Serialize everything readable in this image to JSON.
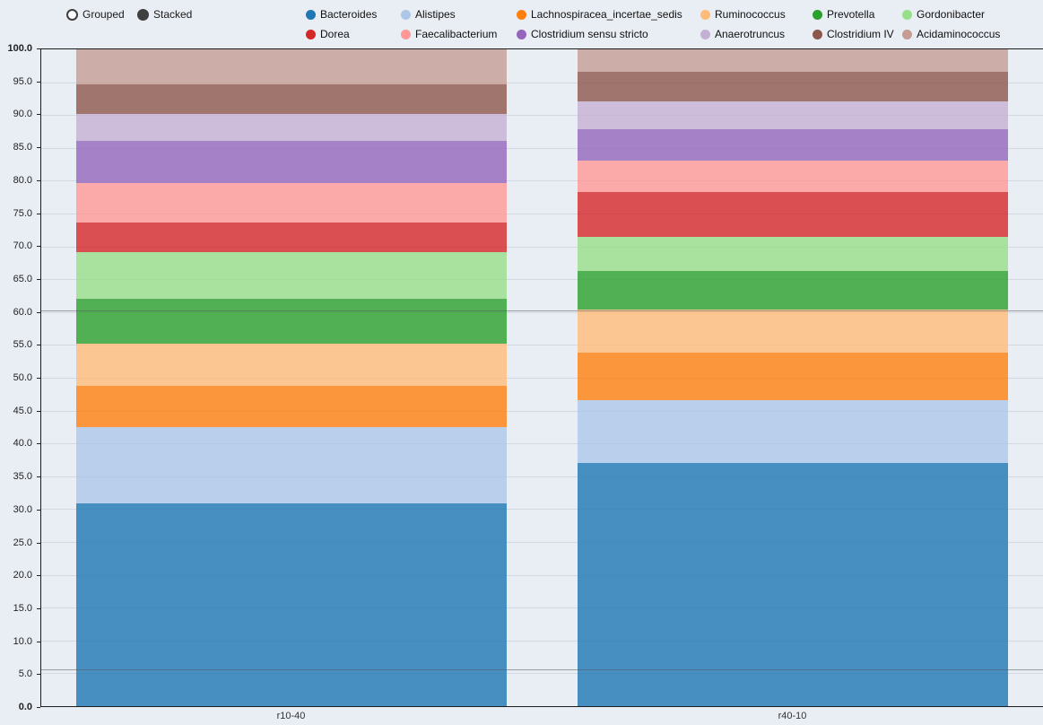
{
  "controls": {
    "grouped": "Grouped",
    "stacked": "Stacked",
    "selected": "Stacked"
  },
  "chart_data": {
    "type": "bar",
    "stacked": true,
    "title": "",
    "xlabel": "",
    "ylabel": "",
    "categories": [
      "r10-40",
      "r40-10"
    ],
    "ylim": [
      0,
      100
    ],
    "ytick_step": 5,
    "ytick_labels": [
      "100.0",
      "95.0",
      "90.0",
      "85.0",
      "80.0",
      "75.0",
      "70.0",
      "65.0",
      "60.0",
      "55.0",
      "50.0",
      "45.0",
      "40.0",
      "35.0",
      "30.0",
      "25.0",
      "20.0",
      "15.0",
      "10.0",
      "5.0",
      "0.0"
    ],
    "grid": true,
    "legend_position": "top",
    "reference_lines": [
      60.2,
      5.6
    ],
    "series": [
      {
        "name": "Bacteroides",
        "color": "#1f77b4",
        "values": [
          30.9,
          37.0
        ]
      },
      {
        "name": "Alistipes",
        "color": "#aec7e8",
        "values": [
          11.6,
          9.6
        ]
      },
      {
        "name": "Lachnospiracea_incertae_sedis",
        "color": "#ff7f0e",
        "values": [
          6.3,
          7.2
        ]
      },
      {
        "name": "Ruminococcus",
        "color": "#ffbb78",
        "values": [
          6.4,
          6.6
        ]
      },
      {
        "name": "Prevotella",
        "color": "#2ca02c",
        "values": [
          6.8,
          5.8
        ]
      },
      {
        "name": "Gordonibacter",
        "color": "#98df8a",
        "values": [
          7.1,
          5.3
        ]
      },
      {
        "name": "Dorea",
        "color": "#d62728",
        "values": [
          4.6,
          6.8
        ]
      },
      {
        "name": "Faecalibacterium",
        "color": "#ff9896",
        "values": [
          5.9,
          4.8
        ]
      },
      {
        "name": "Clostridium sensu stricto",
        "color": "#9467bd",
        "values": [
          6.5,
          4.8
        ]
      },
      {
        "name": "Anaerotruncus",
        "color": "#c5b0d5",
        "values": [
          4.1,
          4.2
        ]
      },
      {
        "name": "Clostridium IV",
        "color": "#8c564b",
        "values": [
          4.5,
          4.5
        ]
      },
      {
        "name": "Acidaminococcus",
        "color": "#c49c94",
        "values": [
          5.3,
          3.4
        ]
      }
    ]
  }
}
